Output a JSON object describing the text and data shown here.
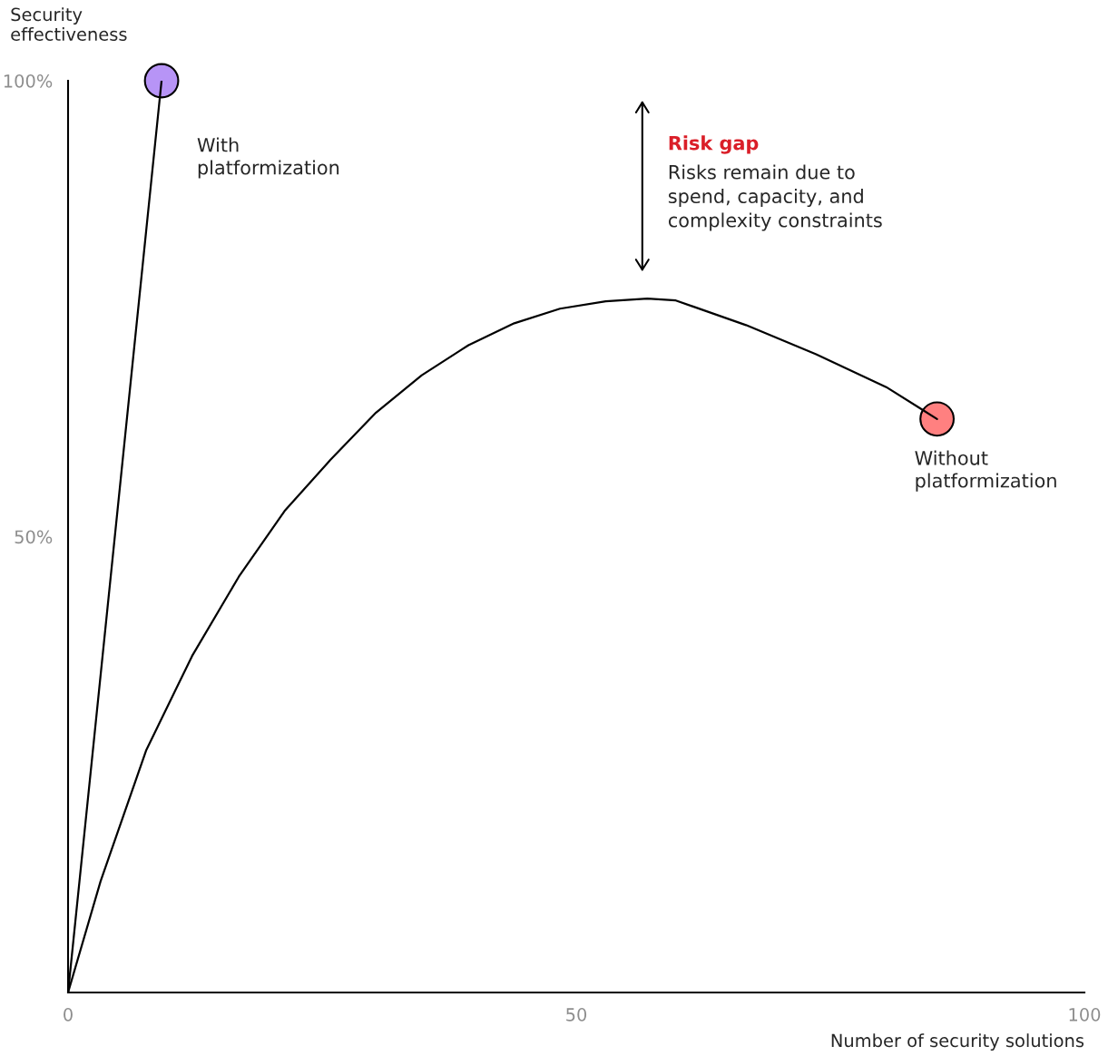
{
  "chart_data": {
    "type": "line",
    "xlabel": "Number of security solutions",
    "ylabel": "Security effectiveness",
    "xlim": [
      0,
      100
    ],
    "xticks": [
      0,
      50,
      100
    ],
    "ylim": [
      0,
      100
    ],
    "yticks": [
      {
        "value": 50,
        "label": "50%"
      },
      {
        "value": 100,
        "label": "100%"
      }
    ],
    "grid": false,
    "legend": false,
    "series": [
      {
        "name": "With platformization",
        "color": "#000000",
        "x": [
          0,
          9.2
        ],
        "values": [
          0,
          100
        ]
      },
      {
        "name": "Without platformization",
        "color": "#000000",
        "x": [
          0,
          3.2,
          7.7,
          12.2,
          16.8,
          21.3,
          25.8,
          30.3,
          34.8,
          39.4,
          43.9,
          48.4,
          52.9,
          57.0,
          59.8,
          66.7,
          73.6,
          80.5,
          85.5
        ],
        "values": [
          0,
          12.2,
          26.6,
          36.9,
          45.6,
          52.8,
          58.4,
          63.6,
          67.7,
          71.0,
          73.4,
          75.0,
          75.8,
          76.1,
          75.9,
          73.2,
          70.0,
          66.4,
          62.9
        ]
      },
      {
        "type": "scatter",
        "color": "#b794f6",
        "x": [
          9.2
        ],
        "values": [
          100
        ]
      },
      {
        "type": "scatter",
        "color": "#ff8080",
        "x": [
          85.5
        ],
        "values": [
          62.9
        ]
      }
    ],
    "annotations": [
      "Risk gap",
      "Risks remain due to\nspend, capacity, and\ncomplexity constraints"
    ]
  }
}
